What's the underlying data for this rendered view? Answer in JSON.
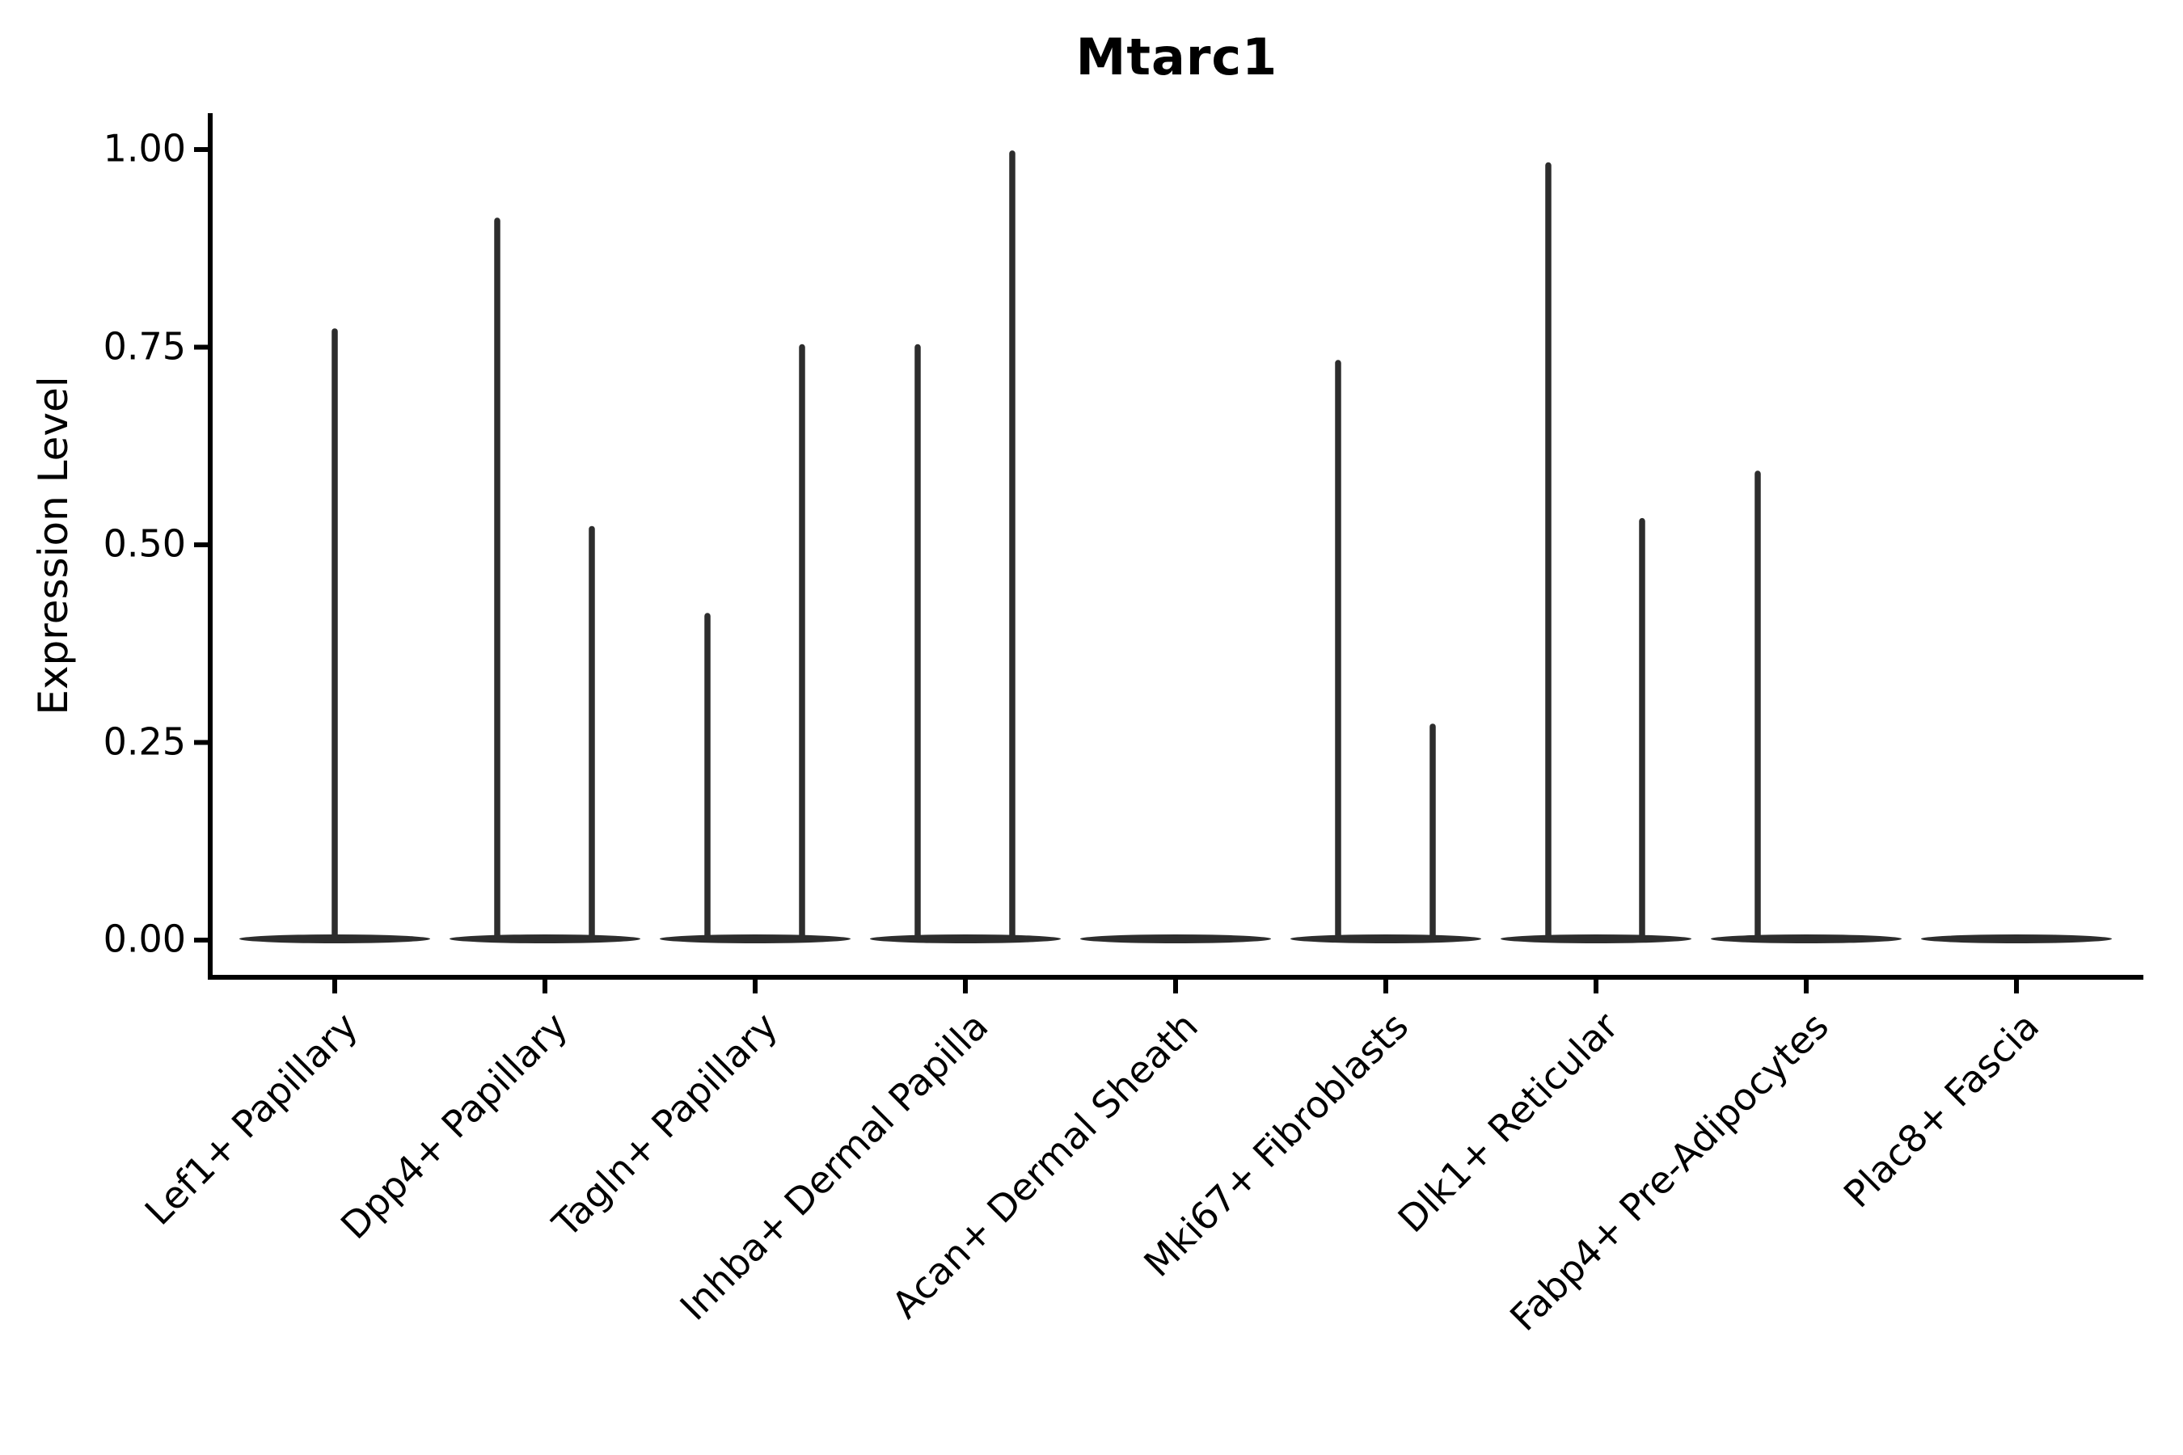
{
  "title": "Mtarc1",
  "colors": {
    "violin": "#2d2d2d",
    "axis": "#000000",
    "background": "#ffffff",
    "text": "#000000"
  },
  "chart_data": {
    "type": "violin",
    "title": "Mtarc1",
    "xlabel": "",
    "ylabel": "Expression Level",
    "ylim": [
      -0.05,
      1.05
    ],
    "grid": false,
    "legend": "none",
    "yticks": [
      {
        "value": 0.0,
        "label": "0.00"
      },
      {
        "value": 0.25,
        "label": "0.25"
      },
      {
        "value": 0.5,
        "label": "0.50"
      },
      {
        "value": 0.75,
        "label": "0.75"
      },
      {
        "value": 1.0,
        "label": "1.00"
      }
    ],
    "categories": [
      "Lef1+ Papillary",
      "Dpp4+ Papillary",
      "Tagln+ Papillary",
      "Inhba+ Dermal Papilla",
      "Acan+ Dermal Sheath",
      "Mki67+ Fibroblasts",
      "Dlk1+ Reticular",
      "Fabp4+ Pre-Adipocytes",
      "Plac8+ Fascia"
    ],
    "violins": [
      {
        "category": "Lef1+ Papillary",
        "zero_bulk": true,
        "spikes": [
          {
            "dx": 0,
            "value": 0.77
          }
        ]
      },
      {
        "category": "Dpp4+ Papillary",
        "zero_bulk": true,
        "spikes": [
          {
            "dx": -59,
            "value": 0.91
          },
          {
            "dx": 58,
            "value": 0.52
          }
        ]
      },
      {
        "category": "Tagln+ Papillary",
        "zero_bulk": true,
        "spikes": [
          {
            "dx": -59,
            "value": 0.41
          },
          {
            "dx": 58,
            "value": 0.75
          }
        ]
      },
      {
        "category": "Inhba+ Dermal Papilla",
        "zero_bulk": true,
        "spikes": [
          {
            "dx": -59,
            "value": 0.75
          },
          {
            "dx": 58,
            "value": 0.995
          }
        ]
      },
      {
        "category": "Acan+ Dermal Sheath",
        "zero_bulk": true,
        "spikes": []
      },
      {
        "category": "Mki67+ Fibroblasts",
        "zero_bulk": true,
        "spikes": [
          {
            "dx": -59,
            "value": 0.73
          },
          {
            "dx": 58,
            "value": 0.27
          }
        ]
      },
      {
        "category": "Dlk1+ Reticular",
        "zero_bulk": true,
        "spikes": [
          {
            "dx": -59,
            "value": 0.98
          },
          {
            "dx": 57,
            "value": 0.53
          }
        ]
      },
      {
        "category": "Fabp4+ Pre-Adipocytes",
        "zero_bulk": true,
        "spikes": [
          {
            "dx": -60,
            "value": 0.59
          }
        ]
      },
      {
        "category": "Plac8+ Fascia",
        "zero_bulk": true,
        "spikes": []
      }
    ]
  }
}
